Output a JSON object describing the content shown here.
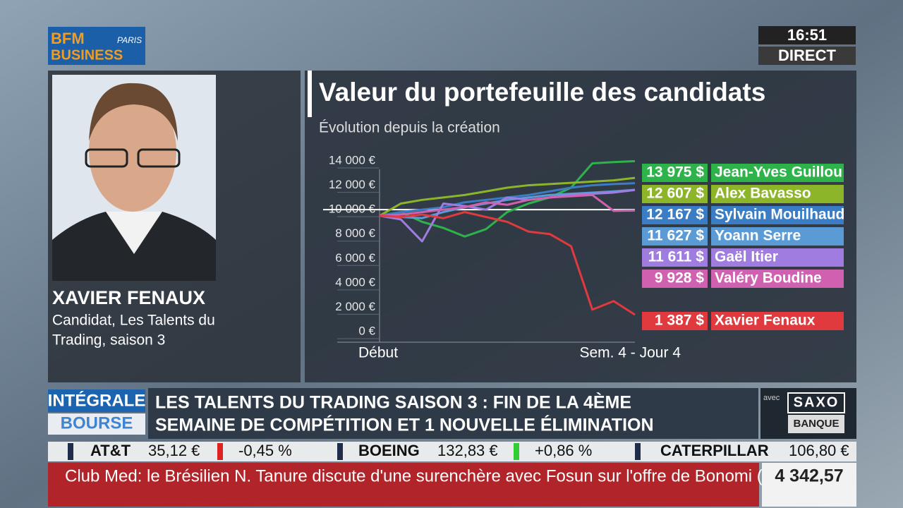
{
  "header": {
    "logo_top": "BFM",
    "logo_city": "PARIS",
    "logo_bottom": "BUSINESS",
    "time": "16:51",
    "status": "DIRECT"
  },
  "guest": {
    "name": "XAVIER FENAUX",
    "role_line1": "Candidat, Les Talents du",
    "role_line2": "Trading, saison 3"
  },
  "chart_data": {
    "type": "line",
    "title": "Valeur du portefeuille des candidats",
    "subtitle": "Évolution depuis la création",
    "categories": [
      "Début",
      null,
      null,
      null,
      null,
      null,
      null,
      null,
      null,
      null,
      null,
      null,
      "Sem. 4 - Jour 4"
    ],
    "ylim": [
      0,
      14000
    ],
    "yticks": [
      {
        "value": 0,
        "label": "0 €"
      },
      {
        "value": 2000,
        "label": "2 000 €"
      },
      {
        "value": 4000,
        "label": "4 000 €"
      },
      {
        "value": 6000,
        "label": "6 000 €"
      },
      {
        "value": 8000,
        "label": "8 000 €"
      },
      {
        "value": 10000,
        "label": "10 000 €"
      },
      {
        "value": 12000,
        "label": "12 000 €"
      },
      {
        "value": 14000,
        "label": "14 000 €"
      }
    ],
    "reference_line": 10000,
    "series": [
      {
        "name": "Jean-Yves Guillou",
        "color": "#2db34a",
        "end_label": "13 975 $",
        "values": [
          9500,
          9800,
          9000,
          8500,
          7800,
          8400,
          9800,
          10500,
          11000,
          11800,
          13800,
          13900,
          13975
        ]
      },
      {
        "name": "Alex Bavasso",
        "color": "#8db52a",
        "end_label": "12 607 $",
        "values": [
          9500,
          10500,
          10800,
          11000,
          11200,
          11500,
          11800,
          12000,
          12100,
          12200,
          12300,
          12400,
          12607
        ]
      },
      {
        "name": "Sylvain Mouilhaud",
        "color": "#3b7dc4",
        "end_label": "12 167 $",
        "values": [
          9500,
          9800,
          10000,
          10200,
          10600,
          10800,
          11000,
          11200,
          11500,
          11800,
          12000,
          12100,
          12167
        ]
      },
      {
        "name": "Yoann Serre",
        "color": "#5a9bd5",
        "end_label": "11 627 $",
        "values": [
          9500,
          9400,
          9300,
          9800,
          10200,
          10500,
          10800,
          11000,
          11200,
          11300,
          11400,
          11500,
          11627
        ]
      },
      {
        "name": "Gaël Itier",
        "color": "#a07ce0",
        "end_label": "11 611 $",
        "values": [
          9500,
          9200,
          7400,
          10500,
          10300,
          10000,
          11000,
          10800,
          11000,
          11200,
          11300,
          11400,
          11611
        ]
      },
      {
        "name": "Valéry Boudine",
        "color": "#d061b0",
        "end_label": "9 928 $",
        "values": [
          9500,
          9600,
          9800,
          10000,
          10200,
          10600,
          10400,
          10800,
          11000,
          11100,
          11200,
          9900,
          9928
        ]
      },
      {
        "name": "Xavier Fenaux",
        "color": "#e03a3e",
        "end_label": "1 387 $",
        "values": [
          9500,
          9400,
          9600,
          9300,
          9800,
          9400,
          9000,
          8200,
          8000,
          7000,
          1800,
          2500,
          1387
        ]
      }
    ]
  },
  "banner": {
    "tag_top": "INTÉGRALE",
    "tag_bottom": "BOURSE",
    "headline_line1": "LES TALENTS DU TRADING SAISON 3 : FIN DE LA 4ÈME",
    "headline_line2": "SEMAINE DE COMPÉTITION ET 1 NOUVELLE ÉLIMINATION",
    "sponsor_prefix": "avec",
    "sponsor_top": "SAXO",
    "sponsor_bottom": "BANQUE"
  },
  "ticker": {
    "items": [
      {
        "name": "AT&T",
        "price": "35,12 €",
        "change": "-0,45 %"
      },
      {
        "name": "BOEING",
        "price": "132,83 €",
        "change": "+0,86 %"
      },
      {
        "name": "CATERPILLAR",
        "price": "106,80 €"
      }
    ],
    "news": "Club Med: le Brésilien N. Tanure discute d'une surenchère avec Fosun sur l'offre de Bonomi (FT).",
    "index_value": "4 342,57"
  }
}
